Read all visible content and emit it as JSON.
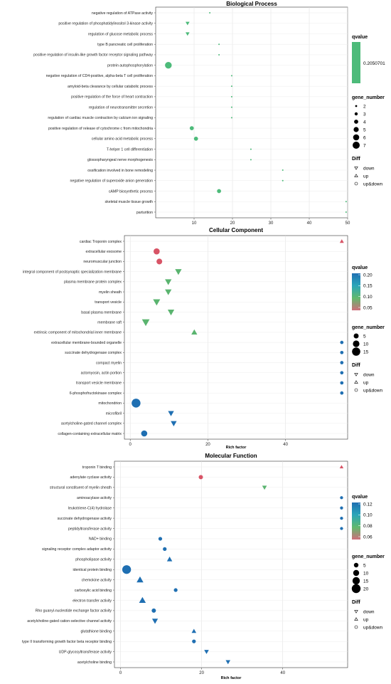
{
  "chart_data": [
    {
      "type": "scatter",
      "title": "Biological Process",
      "xlabel": "",
      "xlim": [
        0,
        50
      ],
      "xticks": [
        10,
        20,
        30,
        40,
        50
      ],
      "grid": true,
      "legend_position": "right",
      "color_legend": {
        "title": "qvalue",
        "single_color": "#4dbb7a",
        "labels": [
          "0.2050701"
        ]
      },
      "size_legend": {
        "title": "gene_number",
        "labels": [
          "2",
          "3",
          "4",
          "5",
          "6",
          "7"
        ]
      },
      "shape_legend": {
        "title": "Diff",
        "labels": [
          "down",
          "up",
          "up&down"
        ]
      },
      "terms": [
        {
          "label": "negative regulation of ATPase activity",
          "x": 14.1,
          "gene_number": 1,
          "diff": "up&down",
          "color": "#4dbb7a"
        },
        {
          "label": "positive regulation of phosphatidylinositol 3-kinase activity",
          "x": 8.3,
          "gene_number": 3,
          "diff": "down",
          "color": "#4dbb7a"
        },
        {
          "label": "regulation of glucose metabolic process",
          "x": 8.3,
          "gene_number": 3,
          "diff": "down",
          "color": "#4dbb7a"
        },
        {
          "label": "type B pancreatic cell proliferation",
          "x": 16.5,
          "gene_number": 1,
          "diff": "up&down",
          "color": "#4dbb7a"
        },
        {
          "label": "positive regulation of insulin-like growth factor receptor signaling pathway",
          "x": 16.5,
          "gene_number": 1,
          "diff": "up&down",
          "color": "#4dbb7a"
        },
        {
          "label": "protein autophosphorylation",
          "x": 3.3,
          "gene_number": 7,
          "diff": "up&down",
          "color": "#4dbb7a"
        },
        {
          "label": "negative regulation of CD4-positive, alpha-beta T cell proliferation",
          "x": 19.8,
          "gene_number": 1,
          "diff": "up&down",
          "color": "#4dbb7a"
        },
        {
          "label": "amyloid-beta clearance by cellular catabolic process",
          "x": 19.8,
          "gene_number": 1,
          "diff": "up&down",
          "color": "#4dbb7a"
        },
        {
          "label": "positive regulation of the force of heart contraction",
          "x": 19.8,
          "gene_number": 1,
          "diff": "up&down",
          "color": "#4dbb7a"
        },
        {
          "label": "regulation of neurotransmitter secretion",
          "x": 19.8,
          "gene_number": 1,
          "diff": "up&down",
          "color": "#4dbb7a"
        },
        {
          "label": "regulation of cardiac muscle contraction by calcium ion signaling",
          "x": 19.8,
          "gene_number": 1,
          "diff": "up&down",
          "color": "#4dbb7a"
        },
        {
          "label": "positive regulation of release of cytochrome c from mitochondria",
          "x": 9.4,
          "gene_number": 4,
          "diff": "up&down",
          "color": "#4dbb7a"
        },
        {
          "label": "cellular amino acid metabolic process",
          "x": 10.5,
          "gene_number": 4,
          "diff": "up&down",
          "color": "#4dbb7a"
        },
        {
          "label": "T-helper 1 cell differentiation",
          "x": 24.8,
          "gene_number": 1,
          "diff": "up&down",
          "color": "#4dbb7a"
        },
        {
          "label": "glossopharyngeal nerve morphogenesis",
          "x": 24.8,
          "gene_number": 1,
          "diff": "up&down",
          "color": "#4dbb7a"
        },
        {
          "label": "ossification involved in bone remodeling",
          "x": 33.1,
          "gene_number": 1,
          "diff": "up&down",
          "color": "#4dbb7a"
        },
        {
          "label": "negative regulation of superoxide anion generation",
          "x": 33.1,
          "gene_number": 1,
          "diff": "up&down",
          "color": "#4dbb7a"
        },
        {
          "label": "cAMP biosynthetic process",
          "x": 16.5,
          "gene_number": 4,
          "diff": "up&down",
          "color": "#4dbb7a"
        },
        {
          "label": "skeletal muscle tissue growth",
          "x": 49.6,
          "gene_number": 1,
          "diff": "up&down",
          "color": "#4dbb7a"
        },
        {
          "label": "parturition",
          "x": 49.6,
          "gene_number": 1,
          "diff": "up&down",
          "color": "#4dbb7a"
        }
      ]
    },
    {
      "type": "scatter",
      "title": "Cellular Component",
      "xlabel": "Rich factor",
      "xlim": [
        -1.5,
        56
      ],
      "xticks": [
        0,
        20,
        40
      ],
      "grid": true,
      "legend_position": "right",
      "color_legend": {
        "title": "qvalue",
        "gradient": [
          "#1f6fb2",
          "#2aa5b9",
          "#62b96d",
          "#cf6f7b"
        ],
        "labels": [
          "0.20",
          "0.15",
          "0.10",
          "0.05"
        ]
      },
      "size_legend": {
        "title": "gene_number",
        "labels": [
          "5",
          "10",
          "15"
        ]
      },
      "shape_legend": {
        "title": "Diff",
        "labels": [
          "down",
          "up",
          "up&down"
        ]
      },
      "terms": [
        {
          "label": "cardiac Troponin complex",
          "x": 54.5,
          "gene_number": 1,
          "diff": "up",
          "color": "#d85466"
        },
        {
          "label": "extracellular exosome",
          "x": 6.8,
          "gene_number": 6,
          "diff": "up&down",
          "color": "#d85466"
        },
        {
          "label": "neuromuscular junction",
          "x": 7.5,
          "gene_number": 5,
          "diff": "up&down",
          "color": "#d85466"
        },
        {
          "label": "integral component of postsynaptic specialization membrane",
          "x": 12.4,
          "gene_number": 4,
          "diff": "down",
          "color": "#5ab46f"
        },
        {
          "label": "plasma membrane protein complex",
          "x": 9.8,
          "gene_number": 4,
          "diff": "down",
          "color": "#5ab46f"
        },
        {
          "label": "myelin sheath",
          "x": 9.8,
          "gene_number": 4,
          "diff": "down",
          "color": "#5ab46f"
        },
        {
          "label": "transport vesicle",
          "x": 6.8,
          "gene_number": 5,
          "diff": "down",
          "color": "#5ab46f"
        },
        {
          "label": "basal plasma membrane",
          "x": 10.5,
          "gene_number": 4,
          "diff": "down",
          "color": "#5ab46f"
        },
        {
          "label": "membrane raft",
          "x": 4.0,
          "gene_number": 6,
          "diff": "down",
          "color": "#5ab46f"
        },
        {
          "label": "extrinsic component of mitochondrial inner membrane",
          "x": 16.5,
          "gene_number": 3,
          "diff": "up",
          "color": "#5ab46f"
        },
        {
          "label": "extracellular membrane-bounded organelle",
          "x": 54.5,
          "gene_number": 1,
          "diff": "up&down",
          "color": "#1f6fb2"
        },
        {
          "label": "succinate dehydrogenase complex",
          "x": 54.5,
          "gene_number": 1,
          "diff": "up&down",
          "color": "#1f6fb2"
        },
        {
          "label": "compact myelin",
          "x": 54.5,
          "gene_number": 1,
          "diff": "up&down",
          "color": "#1f6fb2"
        },
        {
          "label": "actomyosin, actin portion",
          "x": 54.5,
          "gene_number": 1,
          "diff": "up&down",
          "color": "#1f6fb2"
        },
        {
          "label": "transport vesicle membrane",
          "x": 54.5,
          "gene_number": 1,
          "diff": "up&down",
          "color": "#1f6fb2"
        },
        {
          "label": "6-phosphofructokinase complex",
          "x": 54.5,
          "gene_number": 1,
          "diff": "up&down",
          "color": "#1f6fb2"
        },
        {
          "label": "mitochondrion",
          "x": 1.5,
          "gene_number": 15,
          "diff": "up&down",
          "color": "#1f6fb2"
        },
        {
          "label": "microfibril",
          "x": 10.5,
          "gene_number": 3,
          "diff": "down",
          "color": "#1f6fb2"
        },
        {
          "label": "acetylcholine-gated channel complex",
          "x": 11.2,
          "gene_number": 3,
          "diff": "down",
          "color": "#1f6fb2"
        },
        {
          "label": "collagen-containing extracellular matrix",
          "x": 3.6,
          "gene_number": 6,
          "diff": "up&down",
          "color": "#1f6fb2"
        }
      ]
    },
    {
      "type": "scatter",
      "title": "Molecular Function",
      "xlabel": "Rich factor",
      "xlim": [
        -1.5,
        56
      ],
      "xticks": [
        0,
        20,
        40
      ],
      "grid": true,
      "legend_position": "right",
      "color_legend": {
        "title": "qvalue",
        "gradient": [
          "#1f6fb2",
          "#2aa5b9",
          "#62b96d",
          "#cf6f7b"
        ],
        "labels": [
          "0.12",
          "0.10",
          "0.08",
          "0.06"
        ]
      },
      "size_legend": {
        "title": "gene_number",
        "labels": [
          "5",
          "10",
          "15",
          "20"
        ]
      },
      "shape_legend": {
        "title": "Diff",
        "labels": [
          "down",
          "up",
          "up&down"
        ]
      },
      "terms": [
        {
          "label": "troponin T binding",
          "x": 54.5,
          "gene_number": 1,
          "diff": "up",
          "color": "#d85466"
        },
        {
          "label": "adenylate cyclase activity",
          "x": 19.8,
          "gene_number": 3,
          "diff": "up&down",
          "color": "#d85466"
        },
        {
          "label": "structural constituent of myelin sheath",
          "x": 35.5,
          "gene_number": 2,
          "diff": "down",
          "color": "#5ab46f"
        },
        {
          "label": "aminoacylase activity",
          "x": 54.5,
          "gene_number": 1,
          "diff": "up&down",
          "color": "#1f6fb2"
        },
        {
          "label": "leukotriene-C(4) hydrolase",
          "x": 54.5,
          "gene_number": 1,
          "diff": "up&down",
          "color": "#1f6fb2"
        },
        {
          "label": "succinate dehydrogenase activity",
          "x": 54.5,
          "gene_number": 1,
          "diff": "up&down",
          "color": "#1f6fb2"
        },
        {
          "label": "peptidyltransferase activity",
          "x": 54.5,
          "gene_number": 1,
          "diff": "up&down",
          "color": "#1f6fb2"
        },
        {
          "label": "NAD+ binding",
          "x": 9.8,
          "gene_number": 2,
          "diff": "up&down",
          "color": "#1f6fb2"
        },
        {
          "label": "signaling receptor complex adaptor activity",
          "x": 10.9,
          "gene_number": 2,
          "diff": "up&down",
          "color": "#1f6fb2"
        },
        {
          "label": "phospholipase activity",
          "x": 12.1,
          "gene_number": 3,
          "diff": "up",
          "color": "#1f6fb2"
        },
        {
          "label": "identical protein binding",
          "x": 1.5,
          "gene_number": 20,
          "diff": "up&down",
          "color": "#1f6fb2"
        },
        {
          "label": "chemokine activity",
          "x": 4.8,
          "gene_number": 6,
          "diff": "up",
          "color": "#1f6fb2"
        },
        {
          "label": "carboxylic acid binding",
          "x": 13.6,
          "gene_number": 2,
          "diff": "up&down",
          "color": "#1f6fb2"
        },
        {
          "label": "electron transfer activity",
          "x": 5.4,
          "gene_number": 6,
          "diff": "up",
          "color": "#1f6fb2"
        },
        {
          "label": "Rho guanyl-nucleotide exchange factor activity",
          "x": 8.2,
          "gene_number": 3,
          "diff": "up&down",
          "color": "#1f6fb2"
        },
        {
          "label": "acetylcholine-gated cation-selective channel activity",
          "x": 8.5,
          "gene_number": 4,
          "diff": "down",
          "color": "#1f6fb2"
        },
        {
          "label": "glutathione binding",
          "x": 18.1,
          "gene_number": 2,
          "diff": "up",
          "color": "#1f6fb2"
        },
        {
          "label": "type II transforming growth factor beta receptor binding",
          "x": 18.1,
          "gene_number": 2,
          "diff": "up&down",
          "color": "#1f6fb2"
        },
        {
          "label": "UDP-glycosyltransferase activity",
          "x": 21.2,
          "gene_number": 2,
          "diff": "down",
          "color": "#1f6fb2"
        },
        {
          "label": "acetylcholine binding",
          "x": 26.5,
          "gene_number": 2,
          "diff": "down",
          "color": "#1f6fb2"
        }
      ]
    }
  ]
}
